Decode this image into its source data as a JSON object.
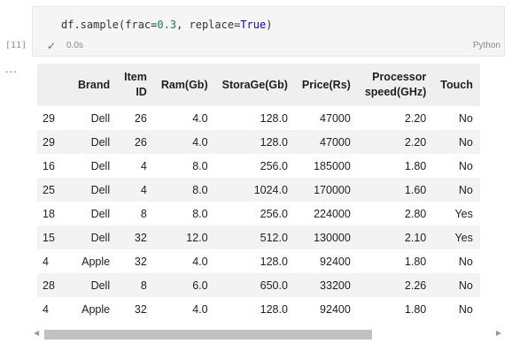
{
  "cell": {
    "exec_count": "[11]",
    "code_prefix": "df.sample(frac=",
    "code_frac": "0.3",
    "code_mid": ", replace=",
    "code_kw": "True",
    "code_suffix": ")",
    "elapsed": "0.0s",
    "language": "Python",
    "output_dots": "..."
  },
  "table": {
    "columns": [
      {
        "line1": "",
        "line2": ""
      },
      {
        "line1": "Brand",
        "line2": ""
      },
      {
        "line1": "Item",
        "line2": "ID"
      },
      {
        "line1": "Ram(Gb)",
        "line2": ""
      },
      {
        "line1": "StoraGe(Gb)",
        "line2": ""
      },
      {
        "line1": "Price(Rs)",
        "line2": ""
      },
      {
        "line1": "Processor",
        "line2": "speed(GHz)"
      },
      {
        "line1": "Touch",
        "line2": ""
      }
    ],
    "rows": [
      [
        "29",
        "Dell",
        "26",
        "4.0",
        "128.0",
        "47000",
        "2.20",
        "No"
      ],
      [
        "29",
        "Dell",
        "26",
        "4.0",
        "128.0",
        "47000",
        "2.20",
        "No"
      ],
      [
        "16",
        "Dell",
        "4",
        "8.0",
        "256.0",
        "185000",
        "1.80",
        "No"
      ],
      [
        "25",
        "Dell",
        "4",
        "8.0",
        "1024.0",
        "170000",
        "1.60",
        "No"
      ],
      [
        "18",
        "Dell",
        "8",
        "8.0",
        "256.0",
        "224000",
        "2.80",
        "Yes"
      ],
      [
        "15",
        "Dell",
        "32",
        "12.0",
        "512.0",
        "130000",
        "2.10",
        "Yes"
      ],
      [
        "4",
        "Apple",
        "32",
        "4.0",
        "128.0",
        "92400",
        "1.80",
        "No"
      ],
      [
        "28",
        "Dell",
        "8",
        "6.0",
        "650.0",
        "33200",
        "2.26",
        "No"
      ],
      [
        "4",
        "Apple",
        "32",
        "4.0",
        "128.0",
        "92400",
        "1.80",
        "No"
      ]
    ]
  },
  "icons": {
    "status": "check-icon",
    "scroll_left": "chevron-left-icon",
    "scroll_right": "chevron-right-icon"
  }
}
